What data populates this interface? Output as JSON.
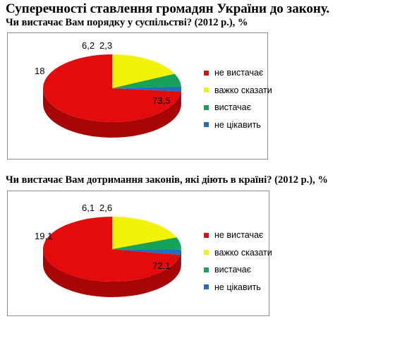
{
  "page": {
    "title": "Суперечності ставлення громадян України до закону."
  },
  "colors": {
    "red": "#e30b0b",
    "red_side": "#a80606",
    "yellow": "#f2f20a",
    "yellow_side": "#b9b906",
    "green": "#17a25a",
    "green_side": "#0f6e3c",
    "blue": "#1e6fc4",
    "blue_side": "#134a85"
  },
  "chart_data": [
    {
      "type": "pie",
      "title": "Чи вистачає Вам порядку у суспільстві? (2012 р.), %",
      "categories": [
        "не вистачає",
        "важко сказати",
        "вистачає",
        "не цікавить"
      ],
      "values": [
        73.5,
        18,
        6.2,
        2.3
      ],
      "value_labels": [
        "73,5",
        "18",
        "6,2",
        "2,3"
      ],
      "colors": [
        "#e30b0b",
        "#f2f20a",
        "#17a25a",
        "#1e6fc4"
      ],
      "legend": "right",
      "style": "3d"
    },
    {
      "type": "pie",
      "title": "Чи вистачає Вам дотримання законів, які діють в країні? (2012 р.), %",
      "categories": [
        "не вистачає",
        "важко сказати",
        "вистачає",
        "не цікавить"
      ],
      "values": [
        72.1,
        19.1,
        6.1,
        2.6
      ],
      "value_labels": [
        "72,1",
        "19,1",
        "6,1",
        "2,6"
      ],
      "colors": [
        "#e30b0b",
        "#f2f20a",
        "#17a25a",
        "#1e6fc4"
      ],
      "legend": "right",
      "style": "3d"
    }
  ]
}
